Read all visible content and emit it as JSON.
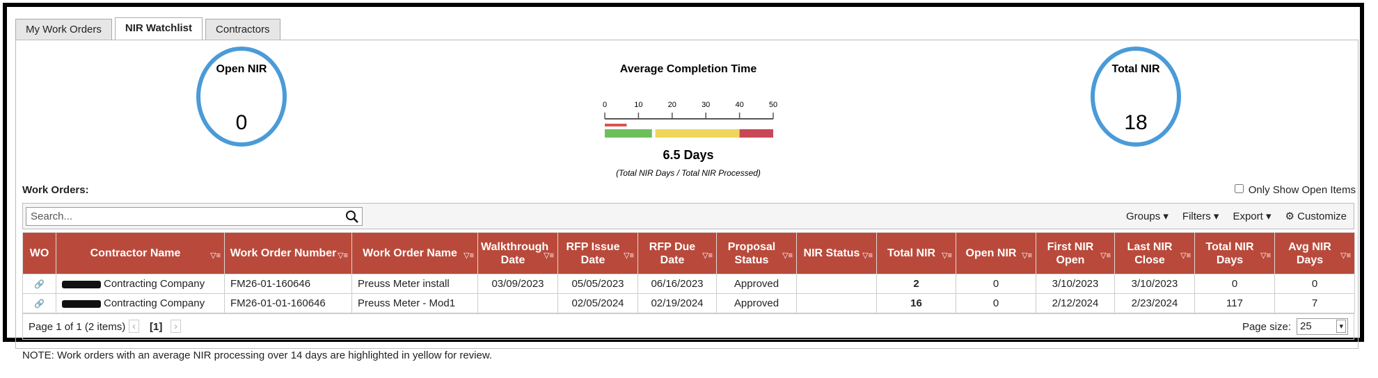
{
  "tabs": [
    "My Work Orders",
    "NIR Watchlist",
    "Contractors"
  ],
  "kpis": {
    "open": {
      "label": "Open NIR",
      "value": "0"
    },
    "total": {
      "label": "Total NIR",
      "value": "18"
    }
  },
  "gauge": {
    "title": "Average Completion Time",
    "ticks": [
      0,
      10,
      20,
      30,
      40,
      50
    ],
    "lim": [
      0,
      50
    ],
    "bands": [
      {
        "from": 0,
        "to": 14,
        "color": "#6cbf5b"
      },
      {
        "from": 15,
        "to": 40,
        "color": "#efd65a"
      },
      {
        "from": 40,
        "to": 50,
        "color": "#c84857"
      }
    ],
    "value": 6.5,
    "value_label": "6.5 Days",
    "note": "(Total NIR Days / Total NIR Processed)"
  },
  "work_orders_label": "Work Orders:",
  "only_open": "Only Show Open Items",
  "search_placeholder": "Search...",
  "toolbar": [
    "Groups",
    "Filters",
    "Export",
    "Customize"
  ],
  "table": {
    "columns": [
      "WO",
      "Contractor Name",
      "Work Order Number",
      "Work Order Name",
      "Walkthrough Date",
      "RFP Issue Date",
      "RFP Due Date",
      "Proposal Status",
      "NIR Status",
      "Total NIR",
      "Open NIR",
      "First NIR Open",
      "Last NIR Close",
      "Total NIR Days",
      "Avg NIR Days"
    ],
    "rows": [
      [
        "Contracting Company",
        "FM26-01-160646",
        "Preuss Meter install",
        "03/09/2023",
        "05/05/2023",
        "06/16/2023",
        "Approved",
        null,
        "2",
        "0",
        "3/10/2023",
        "3/10/2023",
        "0",
        "0"
      ],
      [
        "Contracting Company",
        "FM26-01-01-160646",
        "Preuss Meter - Mod1",
        null,
        "02/05/2024",
        "02/19/2024",
        "Approved",
        null,
        "16",
        "0",
        "2/12/2024",
        "2/23/2024",
        "117",
        "7"
      ]
    ]
  },
  "pager": {
    "summary": "Page 1 of 1 (2 items)",
    "current": "[1]",
    "page_size_label": "Page size:",
    "page_size": "25"
  },
  "note": "NOTE: Work orders with an average NIR processing over 14 days are highlighted in yellow for review."
}
